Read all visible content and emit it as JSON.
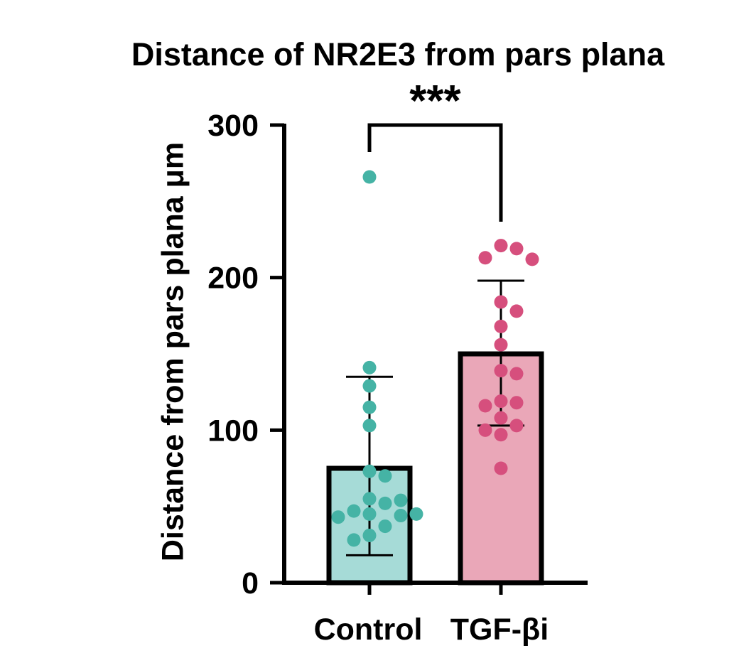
{
  "chart_data": {
    "type": "bar",
    "title": "Distance of NR2E3 from pars plana",
    "xlabel": "",
    "ylabel": "Distance from pars plana μm",
    "ylim": [
      0,
      300
    ],
    "yticks": [
      0,
      100,
      200,
      300
    ],
    "categories": [
      "Control",
      "TGF-βi"
    ],
    "values": [
      75,
      150
    ],
    "error_bars": [
      {
        "lower": 18,
        "upper": 135
      },
      {
        "lower": 103,
        "upper": 198
      }
    ],
    "colors": {
      "Control": {
        "fill": "#a6dbd7",
        "point": "#45b3a5"
      },
      "TGF-βi": {
        "fill": "#eaa7b8",
        "point": "#d64f7d"
      }
    },
    "points": [
      [
        266,
        141,
        129,
        115,
        103,
        73,
        70,
        55,
        52,
        47,
        45,
        44,
        43,
        54,
        45,
        37,
        31,
        28
      ],
      [
        221,
        219,
        213,
        212,
        184,
        178,
        168,
        156,
        139,
        137,
        119,
        118,
        116,
        108,
        103,
        100,
        97,
        75
      ]
    ],
    "significance": {
      "label": "***",
      "between": [
        "Control",
        "TGF-βi"
      ],
      "bracket_value": 300
    }
  }
}
